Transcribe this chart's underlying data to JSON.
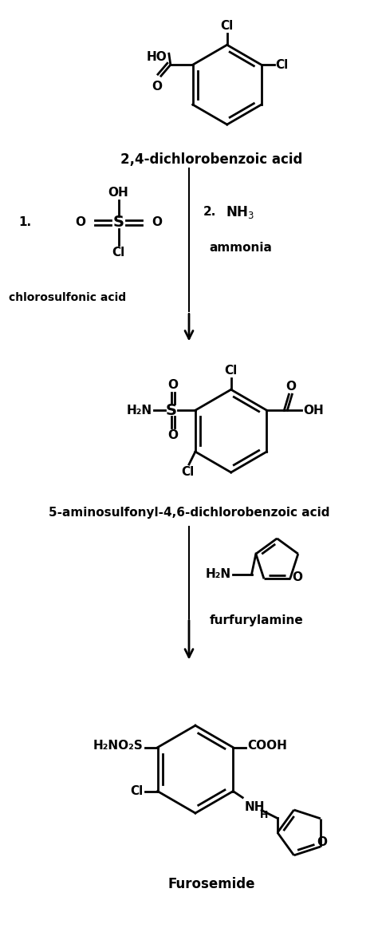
{
  "bg_color": "#ffffff",
  "fig_width": 4.74,
  "fig_height": 11.73,
  "dpi": 100,
  "mol1_label": "2,4-dichlorobenzoic acid",
  "mol2_label": "chlorosulfonic acid",
  "mol3_label": "5-aminosulfonyl-4,6-dichlorobenzoic acid",
  "reagent3_name": "furfurylamine",
  "mol4_label": "Furosemide"
}
